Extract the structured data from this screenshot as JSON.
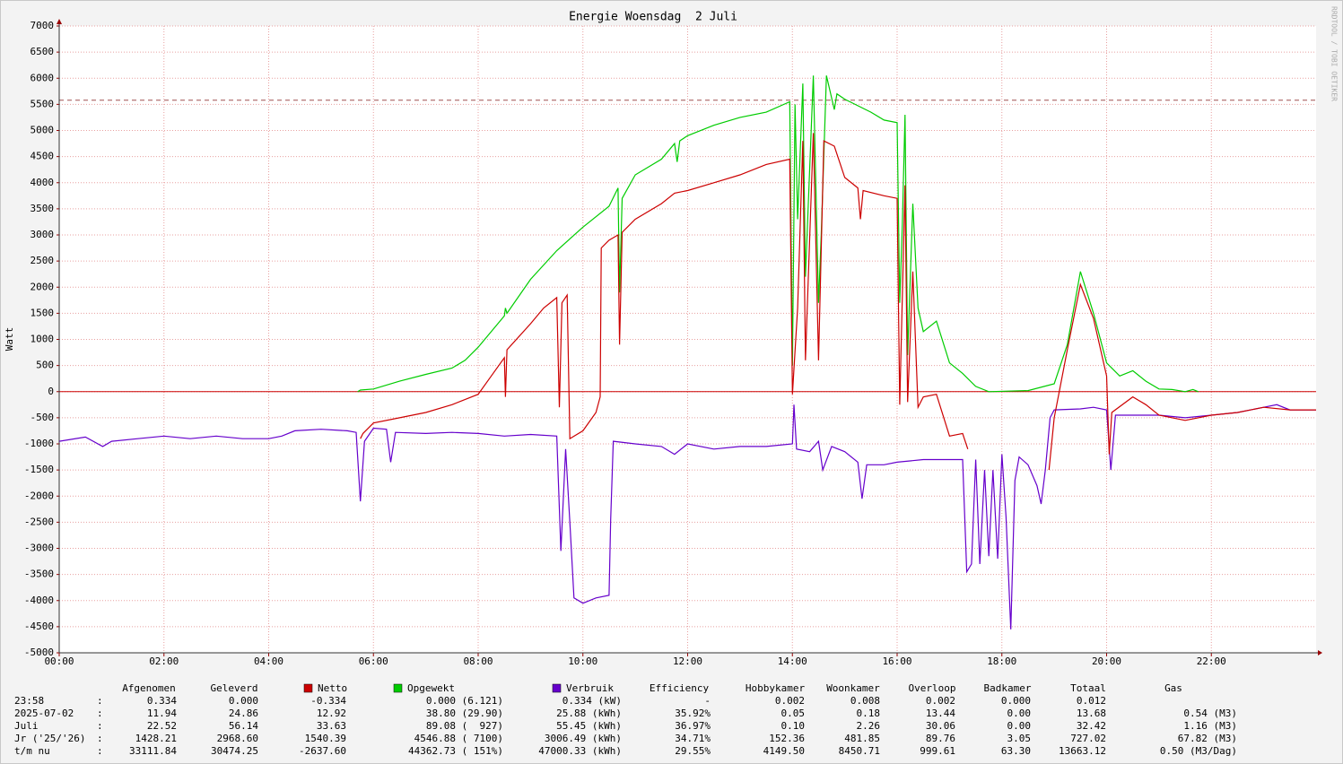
{
  "chart_data": {
    "type": "line",
    "title": "Energie Woensdag  2 Juli",
    "ylabel": "Watt",
    "watermark": "RRDTOOL / TOBI OETIKER",
    "xlim": [
      0,
      24
    ],
    "xticks": [
      {
        "value": 0,
        "label": "00:00"
      },
      {
        "value": 2,
        "label": "02:00"
      },
      {
        "value": 4,
        "label": "04:00"
      },
      {
        "value": 6,
        "label": "06:00"
      },
      {
        "value": 8,
        "label": "08:00"
      },
      {
        "value": 10,
        "label": "10:00"
      },
      {
        "value": 12,
        "label": "12:00"
      },
      {
        "value": 14,
        "label": "14:00"
      },
      {
        "value": 16,
        "label": "16:00"
      },
      {
        "value": 18,
        "label": "18:00"
      },
      {
        "value": 20,
        "label": "20:00"
      },
      {
        "value": 22,
        "label": "22:00"
      }
    ],
    "ylim": [
      -5000,
      7000
    ],
    "yticks": [
      -5000,
      -4500,
      -4000,
      -3500,
      -3000,
      -2500,
      -2000,
      -1500,
      -1000,
      -500,
      0,
      500,
      1000,
      1500,
      2000,
      2500,
      3000,
      3500,
      4000,
      4500,
      5000,
      5500,
      6000,
      6500,
      7000
    ],
    "grid": true,
    "reference_line": 5580,
    "zero_line_color": "#cc0000",
    "series": [
      {
        "name": "Netto",
        "color": "#cc0000",
        "x": [
          5.75,
          5.8,
          6.0,
          6.5,
          7.0,
          7.5,
          8.0,
          8.25,
          8.5,
          8.52,
          8.55,
          9.0,
          9.25,
          9.5,
          9.55,
          9.6,
          9.7,
          9.75,
          10.0,
          10.25,
          10.33,
          10.35,
          10.5,
          10.67,
          10.7,
          10.75,
          11.0,
          11.5,
          11.75,
          12.0,
          12.5,
          13.0,
          13.5,
          13.95,
          14.0,
          14.1,
          14.2,
          14.25,
          14.4,
          14.5,
          14.6,
          14.8,
          15.0,
          15.25,
          15.3,
          15.35,
          15.75,
          16.0,
          16.05,
          16.15,
          16.2,
          16.3,
          16.4,
          16.5,
          16.75,
          17.0,
          17.25,
          17.35,
          17.45,
          18.9,
          19.0,
          19.25,
          19.5,
          19.75,
          20.0,
          20.05,
          20.1,
          20.5,
          20.75,
          21.0,
          21.5,
          22.0,
          22.5,
          23.0,
          23.5,
          24.0
        ],
        "values": [
          -900,
          -800,
          -600,
          -500,
          -400,
          -250,
          -50,
          300,
          650,
          -100,
          800,
          1300,
          1600,
          1800,
          -300,
          1700,
          1850,
          -900,
          -750,
          -400,
          -100,
          2750,
          2900,
          3000,
          900,
          3050,
          3300,
          3600,
          3800,
          3850,
          4000,
          4150,
          4350,
          4450,
          -50,
          1600,
          4800,
          600,
          4950,
          600,
          4800,
          4700,
          4100,
          3900,
          3300,
          3850,
          3750,
          3700,
          -250,
          3950,
          -200,
          2300,
          -300,
          -100,
          -50,
          -850,
          -800,
          -1100,
          null,
          -1500,
          -500,
          800,
          2050,
          1400,
          300,
          -1200,
          -400,
          -100,
          -250,
          -450,
          -550,
          -450,
          -400,
          -300,
          -350,
          -350
        ]
      },
      {
        "name": "Opgewekt",
        "color": "#00cc00",
        "x": [
          5.7,
          5.75,
          6.0,
          6.5,
          7.0,
          7.5,
          7.75,
          8.0,
          8.25,
          8.5,
          8.52,
          8.55,
          9.0,
          9.5,
          10.0,
          10.5,
          10.67,
          10.7,
          10.75,
          11.0,
          11.5,
          11.75,
          11.8,
          11.85,
          12.0,
          12.5,
          13.0,
          13.5,
          13.95,
          14.0,
          14.05,
          14.1,
          14.2,
          14.25,
          14.4,
          14.5,
          14.55,
          14.65,
          14.8,
          14.85,
          15.0,
          15.5,
          15.75,
          16.0,
          16.05,
          16.1,
          16.15,
          16.2,
          16.3,
          16.4,
          16.5,
          16.75,
          17.0,
          17.25,
          17.5,
          17.75,
          18.5,
          19.0,
          19.25,
          19.5,
          19.75,
          20.0,
          20.25,
          20.5,
          20.75,
          21.0,
          21.25,
          21.5,
          21.65,
          21.75
        ],
        "values": [
          0,
          30,
          50,
          200,
          330,
          450,
          600,
          850,
          1150,
          1450,
          1600,
          1500,
          2150,
          2700,
          3150,
          3550,
          3900,
          1900,
          3700,
          4150,
          4450,
          4750,
          4400,
          4800,
          4900,
          5100,
          5250,
          5350,
          5550,
          500,
          5500,
          3300,
          5900,
          2200,
          6050,
          1700,
          3000,
          6050,
          5400,
          5700,
          5600,
          5350,
          5200,
          5150,
          1700,
          3200,
          5300,
          700,
          3600,
          1600,
          1150,
          1350,
          550,
          350,
          100,
          0,
          20,
          150,
          900,
          2300,
          1500,
          550,
          300,
          400,
          200,
          50,
          40,
          0,
          40,
          0
        ]
      },
      {
        "name": "Verbruik",
        "color": "#6600cc",
        "x": [
          0,
          0.5,
          0.83,
          1.0,
          1.5,
          2.0,
          2.5,
          3.0,
          3.5,
          4.0,
          4.25,
          4.5,
          5.0,
          5.5,
          5.67,
          5.75,
          5.83,
          6.0,
          6.25,
          6.33,
          6.42,
          7.0,
          7.5,
          8.0,
          8.5,
          9.0,
          9.5,
          9.58,
          9.67,
          9.75,
          9.83,
          10.0,
          10.25,
          10.5,
          10.53,
          10.58,
          11.0,
          11.5,
          11.75,
          12.0,
          12.5,
          13.0,
          13.5,
          14.0,
          14.03,
          14.08,
          14.33,
          14.5,
          14.58,
          14.75,
          15.0,
          15.25,
          15.33,
          15.42,
          15.75,
          16.0,
          16.5,
          17.0,
          17.25,
          17.33,
          17.42,
          17.5,
          17.58,
          17.67,
          17.75,
          17.83,
          17.92,
          18.0,
          18.08,
          18.17,
          18.25,
          18.33,
          18.5,
          18.67,
          18.75,
          18.83,
          18.92,
          19.0,
          19.5,
          19.75,
          20.0,
          20.08,
          20.17,
          20.5,
          21.0,
          21.5,
          22.0,
          22.5,
          23.0,
          23.25,
          23.5,
          24.0
        ],
        "values": [
          -950,
          -870,
          -1050,
          -950,
          -900,
          -850,
          -900,
          -850,
          -900,
          -900,
          -850,
          -750,
          -720,
          -750,
          -780,
          -2100,
          -950,
          -700,
          -720,
          -1350,
          -780,
          -800,
          -780,
          -800,
          -850,
          -820,
          -850,
          -3050,
          -1100,
          -2500,
          -3950,
          -4050,
          -3950,
          -3900,
          -2450,
          -950,
          -1000,
          -1050,
          -1200,
          -1000,
          -1100,
          -1050,
          -1050,
          -1000,
          -250,
          -1100,
          -1150,
          -950,
          -1500,
          -1050,
          -1150,
          -1350,
          -2050,
          -1400,
          -1400,
          -1350,
          -1300,
          -1300,
          -1300,
          -3450,
          -3300,
          -1300,
          -3300,
          -1500,
          -3150,
          -1500,
          -3200,
          -1200,
          -2400,
          -4550,
          -1700,
          -1250,
          -1400,
          -1800,
          -2150,
          -1500,
          -500,
          -350,
          -330,
          -300,
          -350,
          -1500,
          -450,
          -450,
          -450,
          -500,
          -450,
          -400,
          -300,
          -250,
          -350,
          -350
        ]
      }
    ]
  },
  "table": {
    "columns": [
      "Afgenomen",
      "Geleverd",
      "Efficiency",
      "Hobbykamer",
      "Woonkamer",
      "Overloop",
      "Badkamer",
      "Totaal",
      "Gas"
    ],
    "rows": [
      [
        "23:58",
        "0.334",
        "0.000",
        "-0.334",
        "0.000 (6.121)",
        "0.334 (kW)",
        "-",
        "0.002",
        "0.008",
        "0.002",
        "0.000",
        "0.012"
      ],
      [
        "2025-07-02",
        "11.94",
        "24.86",
        "12.92",
        "38.80 (29.90)",
        "25.88 (kWh)",
        "35.92%",
        "0.05",
        "0.18",
        "13.44",
        "0.00",
        "13.68",
        "0.54 (M3)"
      ],
      [
        "Juli",
        "22.52",
        "56.14",
        "33.63",
        "89.08 (  927)",
        "55.45 (kWh)",
        "36.97%",
        "0.10",
        "2.26",
        "30.06",
        "0.00",
        "32.42",
        "1.16 (M3)"
      ],
      [
        "Jr ('25/'26)",
        "1428.21",
        "2968.60",
        "1540.39",
        "4546.88 ( 7100)",
        "3006.49 (kWh)",
        "34.71%",
        "152.36",
        "481.85",
        "89.76",
        "3.05",
        "727.02",
        "67.82 (M3)"
      ],
      [
        "t/m nu",
        "33111.84",
        "30474.25",
        "-2637.60",
        "44362.73 ( 151%)",
        "47000.33 (kWh)",
        "29.55%",
        "4149.50",
        "8450.71",
        "999.61",
        "63.30",
        "13663.12",
        "0.50 (M3/Dag)"
      ]
    ]
  }
}
